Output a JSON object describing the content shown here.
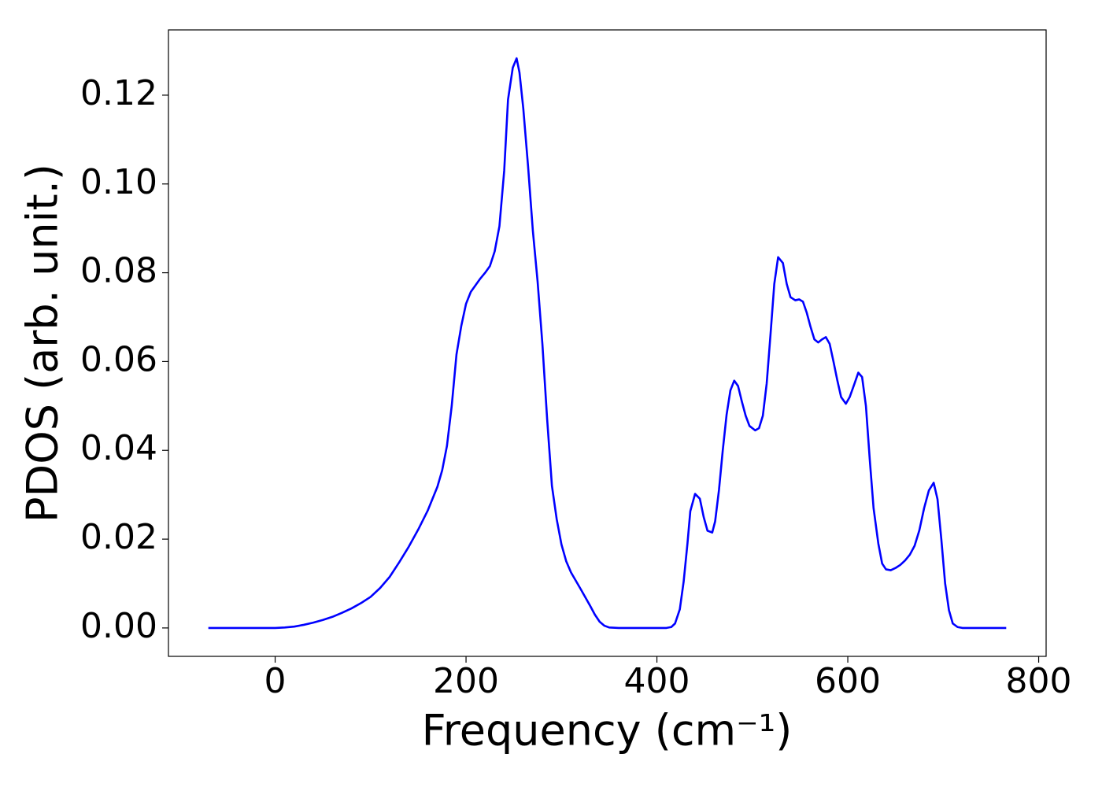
{
  "chart_data": {
    "type": "line",
    "xlabel": "Frequency (cm⁻¹)",
    "ylabel": "PDOS (arb. unit.)",
    "x": [
      -70,
      -50,
      -30,
      -10,
      0,
      10,
      20,
      30,
      40,
      50,
      60,
      70,
      80,
      90,
      100,
      110,
      120,
      130,
      140,
      150,
      160,
      170,
      175,
      180,
      185,
      190,
      195,
      200,
      205,
      210,
      215,
      220,
      225,
      230,
      235,
      240,
      244,
      249,
      253,
      256,
      260,
      265,
      270,
      275,
      280,
      285,
      290,
      295,
      300,
      305,
      310,
      320,
      330,
      335,
      340,
      345,
      350,
      360,
      380,
      400,
      410,
      415,
      419,
      424,
      428,
      432,
      435,
      440,
      445,
      449,
      453,
      458,
      461,
      465,
      469,
      473,
      477,
      481,
      485,
      489,
      493,
      497,
      503,
      507,
      511,
      515,
      519,
      523,
      527,
      532,
      536,
      540,
      545,
      549,
      553,
      557,
      561,
      565,
      569,
      573,
      577,
      581,
      585,
      589,
      593,
      598,
      602,
      607,
      611,
      615,
      619,
      623,
      627,
      632,
      636,
      640,
      645,
      650,
      655,
      660,
      665,
      670,
      675,
      680,
      685,
      690,
      694,
      698,
      702,
      706,
      710,
      715,
      720,
      740,
      766
    ],
    "series": [
      {
        "name": "PDOS",
        "color": "#0000ff",
        "values": [
          0,
          0,
          0,
          0,
          0,
          0.0001,
          0.0003,
          0.0007,
          0.0012,
          0.0018,
          0.0025,
          0.0034,
          0.0044,
          0.0056,
          0.007,
          0.009,
          0.0115,
          0.0148,
          0.0183,
          0.0222,
          0.0265,
          0.0318,
          0.0355,
          0.041,
          0.05,
          0.0616,
          0.068,
          0.073,
          0.0757,
          0.0772,
          0.0787,
          0.08,
          0.0815,
          0.0848,
          0.0905,
          0.103,
          0.119,
          0.1262,
          0.1283,
          0.1251,
          0.117,
          0.104,
          0.0895,
          0.078,
          0.064,
          0.047,
          0.032,
          0.0245,
          0.0188,
          0.015,
          0.0125,
          0.0088,
          0.005,
          0.003,
          0.0014,
          0.0005,
          0.0001,
          0,
          0,
          0,
          0,
          0.0002,
          0.001,
          0.0042,
          0.0104,
          0.019,
          0.0263,
          0.0302,
          0.0291,
          0.025,
          0.0219,
          0.0215,
          0.024,
          0.031,
          0.04,
          0.048,
          0.0535,
          0.0557,
          0.0545,
          0.051,
          0.0478,
          0.0455,
          0.0445,
          0.045,
          0.0478,
          0.055,
          0.066,
          0.0775,
          0.0835,
          0.0822,
          0.0775,
          0.0745,
          0.0738,
          0.074,
          0.0735,
          0.071,
          0.0678,
          0.065,
          0.0643,
          0.065,
          0.0655,
          0.064,
          0.06,
          0.0558,
          0.052,
          0.0505,
          0.052,
          0.055,
          0.0575,
          0.0565,
          0.05,
          0.038,
          0.027,
          0.019,
          0.0145,
          0.0132,
          0.013,
          0.0135,
          0.0142,
          0.0152,
          0.0165,
          0.0185,
          0.022,
          0.027,
          0.031,
          0.0327,
          0.029,
          0.02,
          0.01,
          0.004,
          0.001,
          0.0002,
          0,
          0,
          0
        ]
      }
    ],
    "xlim": [
      -111.8,
      807.8
    ],
    "ylim": [
      -0.0064,
      0.1347
    ],
    "xticks": [
      0,
      200,
      400,
      600,
      800
    ],
    "yticks": [
      {
        "value": 0,
        "label": "0.00"
      },
      {
        "value": 0.02,
        "label": "0.02"
      },
      {
        "value": 0.04,
        "label": "0.04"
      },
      {
        "value": 0.06,
        "label": "0.06"
      },
      {
        "value": 0.08,
        "label": "0.08"
      },
      {
        "value": 0.1,
        "label": "0.10"
      },
      {
        "value": 0.12,
        "label": "0.12"
      }
    ],
    "grid": false
  }
}
